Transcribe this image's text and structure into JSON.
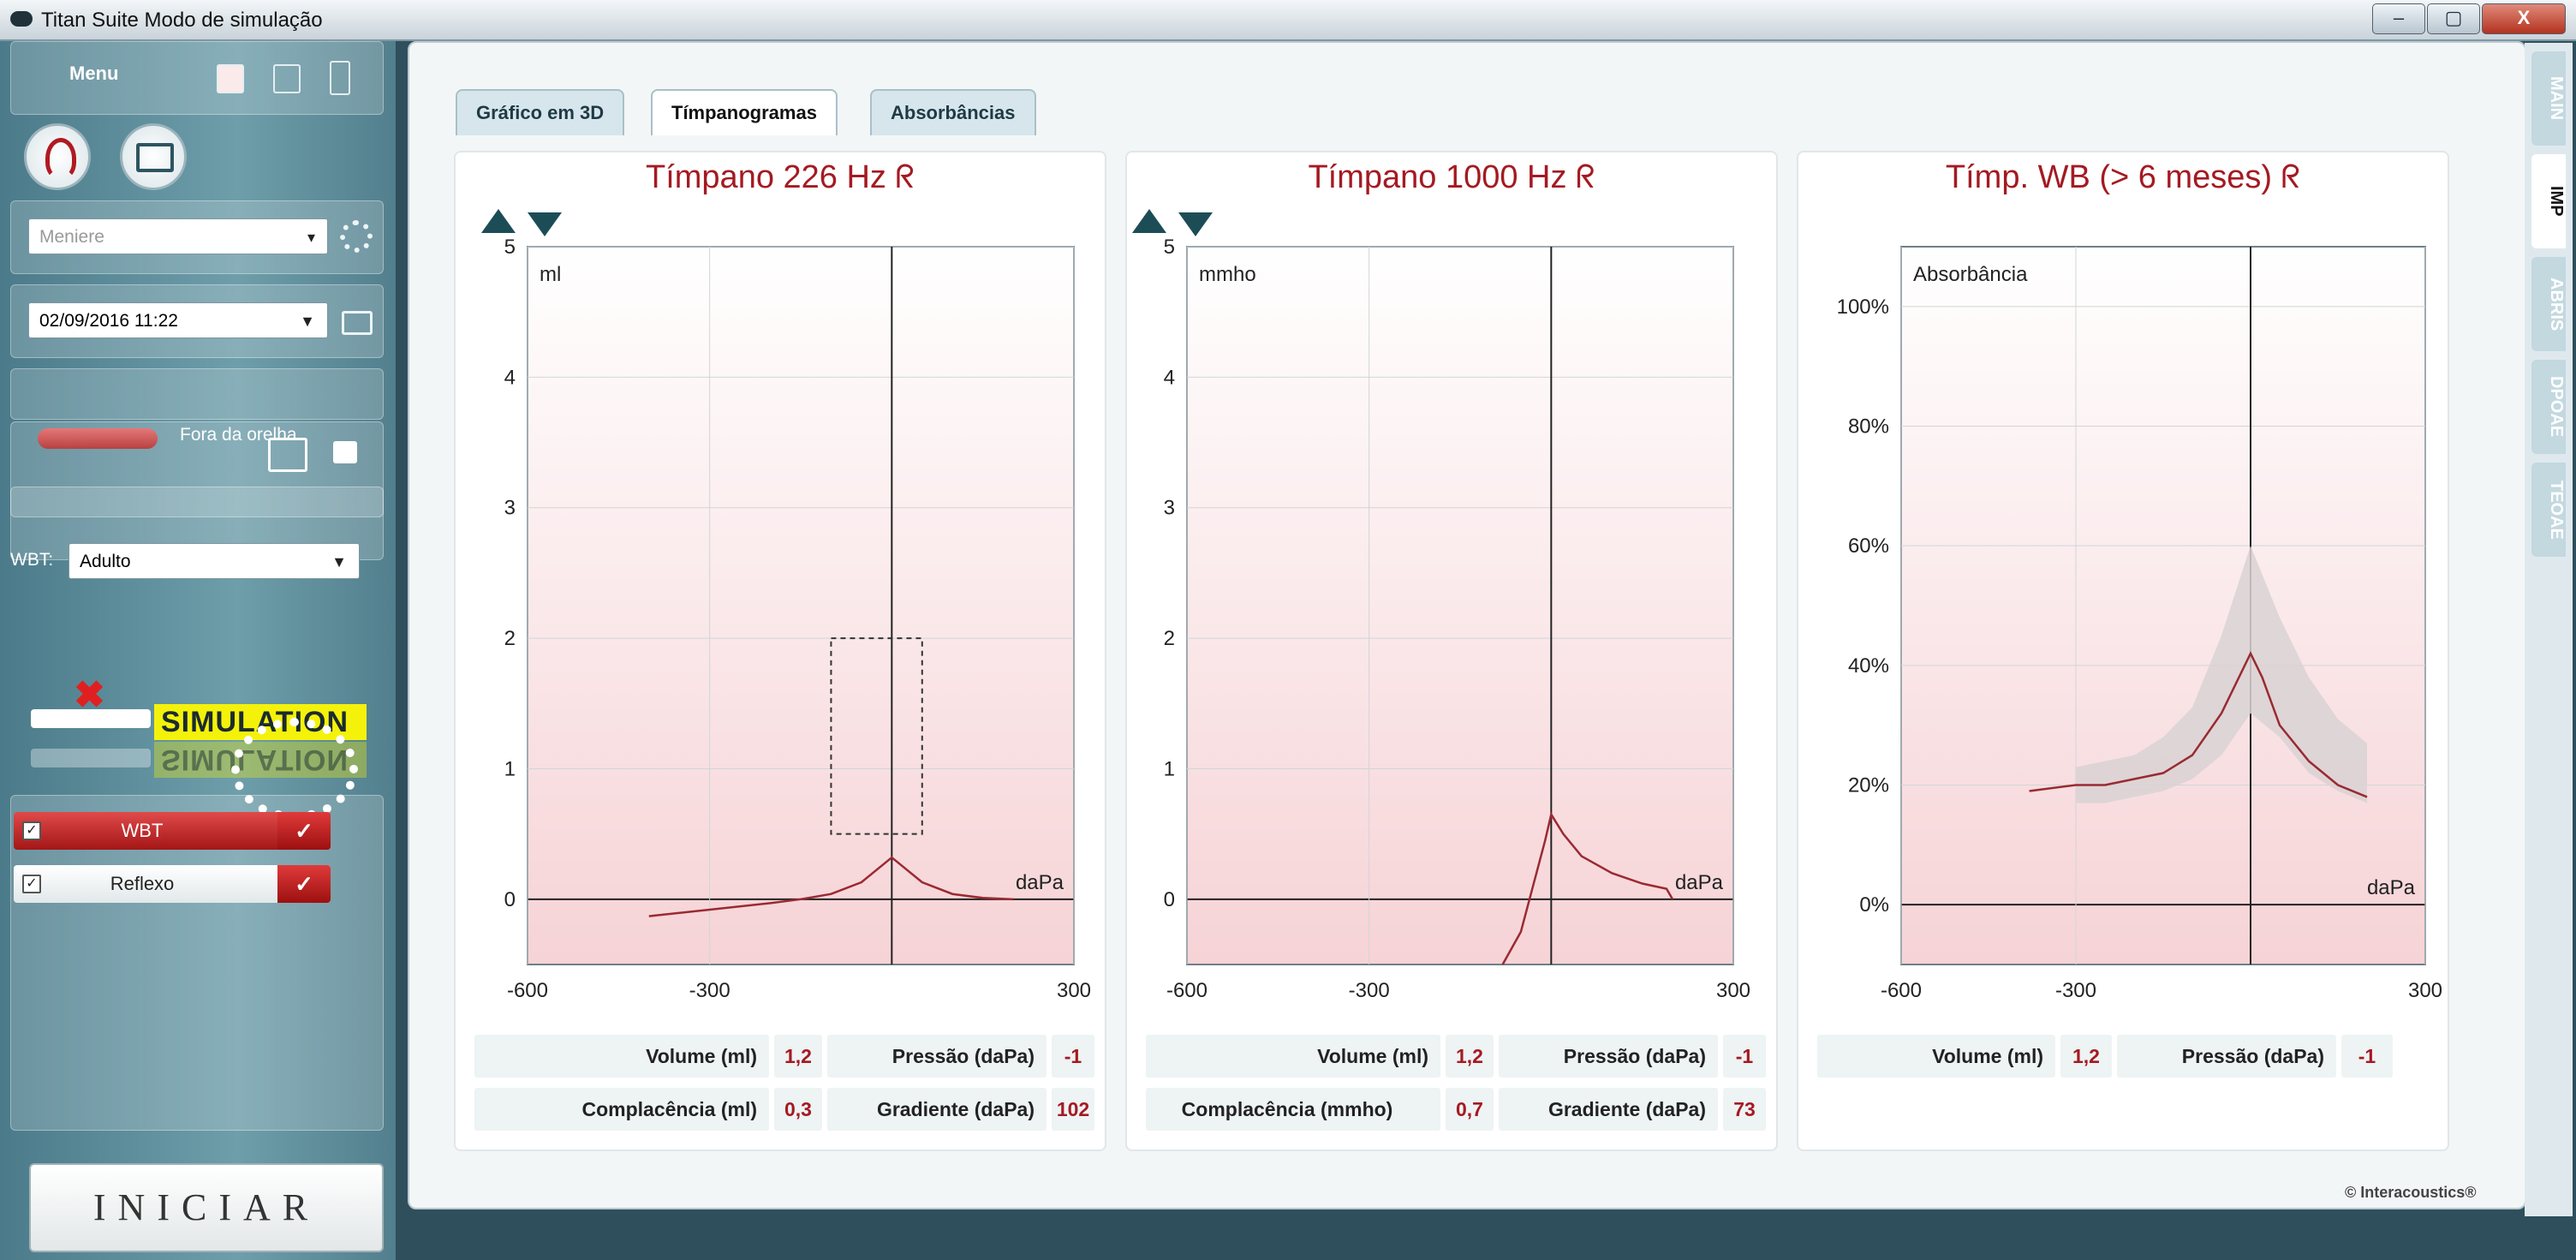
{
  "window": {
    "title": "Titan Suite Modo de simulação",
    "btn_min": "–",
    "btn_max": "▢",
    "btn_close": "X"
  },
  "sidebar": {
    "menu_label": "Menu",
    "protocol_value": "Meniere",
    "datetime_value": "02/09/2016 11:22",
    "probe_status": "Fora da orelha",
    "wbt_label": "WBT:",
    "wbt_value": "Adulto",
    "simulation_text": "SIMULATION",
    "tests": [
      {
        "label": "WBT",
        "checked": true
      },
      {
        "label": "Reflexo",
        "checked": true
      }
    ],
    "start_button": "INICIAR"
  },
  "tabs": [
    "Gráfico em 3D",
    "Tímpanogramas",
    "Absorbâncias"
  ],
  "active_tab": 1,
  "side_tabs": [
    "MAIN",
    "IMP",
    "ABRIS",
    "DPOAE",
    "TEOAE"
  ],
  "active_side_tab": 1,
  "footer": "© Interacoustics®",
  "chart_data": [
    {
      "type": "line",
      "title": "Tímpano 226 Hz",
      "unit_label": "ml",
      "xunit": "daPa",
      "xlim": [
        -600,
        300
      ],
      "xticks": [
        -600,
        -300,
        300
      ],
      "ylim": [
        -0.5,
        5
      ],
      "yticks": [
        0,
        1,
        2,
        3,
        4,
        5
      ],
      "series": [
        {
          "x": [
            -400,
            -300,
            -200,
            -150,
            -100,
            -50,
            0,
            50,
            100,
            150,
            200
          ],
          "y": [
            -0.13,
            -0.08,
            -0.03,
            0.0,
            0.04,
            0.13,
            0.32,
            0.13,
            0.04,
            0.01,
            0.0
          ]
        }
      ],
      "box": {
        "x": [
          -100,
          50
        ],
        "y": [
          0.5,
          2.0
        ]
      },
      "readouts": [
        {
          "label": "Volume (ml)",
          "value": "1,2"
        },
        {
          "label": "Pressão (daPa)",
          "value": "-1"
        },
        {
          "label": "Complacência (ml)",
          "value": "0,3"
        },
        {
          "label": "Gradiente (daPa)",
          "value": "102"
        }
      ]
    },
    {
      "type": "line",
      "title": "Tímpano 1000 Hz",
      "unit_label": "mmho",
      "xunit": "daPa",
      "xlim": [
        -600,
        300
      ],
      "xticks": [
        -600,
        -300,
        300
      ],
      "ylim": [
        -0.5,
        5
      ],
      "yticks": [
        0,
        1,
        2,
        3,
        4,
        5
      ],
      "series": [
        {
          "x": [
            -80,
            -50,
            -30,
            -10,
            0,
            20,
            50,
            100,
            150,
            190,
            200
          ],
          "y": [
            -0.5,
            -0.25,
            0.1,
            0.45,
            0.65,
            0.5,
            0.33,
            0.2,
            0.12,
            0.08,
            0.0
          ]
        }
      ],
      "readouts": [
        {
          "label": "Volume (ml)",
          "value": "1,2"
        },
        {
          "label": "Pressão (daPa)",
          "value": "-1"
        },
        {
          "label": "Complacência (mmho)",
          "value": "0,7"
        },
        {
          "label": "Gradiente (daPa)",
          "value": "73"
        }
      ]
    },
    {
      "type": "area",
      "title": "Tímp. WB (> 6 meses)",
      "unit_label": "Absorbância",
      "xunit": "daPa",
      "xlim": [
        -600,
        300
      ],
      "xticks": [
        -600,
        -300,
        300
      ],
      "ylim": [
        -10,
        110
      ],
      "yticks": [
        0,
        20,
        40,
        60,
        80,
        100
      ],
      "yticklabels": [
        "0%",
        "20%",
        "40%",
        "60%",
        "80%",
        "100%"
      ],
      "band": {
        "x": [
          -300,
          -250,
          -200,
          -150,
          -100,
          -50,
          0,
          50,
          100,
          150,
          200
        ],
        "upper": [
          23,
          24,
          25,
          28,
          33,
          45,
          60,
          48,
          38,
          31,
          27
        ],
        "lower": [
          17,
          17,
          18,
          19,
          21,
          25,
          32,
          28,
          22,
          19,
          17
        ]
      },
      "series": [
        {
          "x": [
            -380,
            -300,
            -250,
            -200,
            -150,
            -100,
            -50,
            0,
            20,
            50,
            100,
            150,
            200
          ],
          "y": [
            19,
            20,
            20,
            21,
            22,
            25,
            32,
            42,
            38,
            30,
            24,
            20,
            18
          ]
        }
      ],
      "readouts": [
        {
          "label": "Volume (ml)",
          "value": "1,2"
        },
        {
          "label": "Pressão (daPa)",
          "value": "-1"
        }
      ]
    }
  ]
}
